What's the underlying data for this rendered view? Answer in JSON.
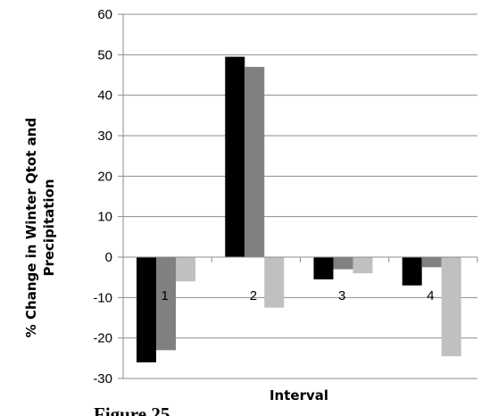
{
  "chart_data": {
    "type": "bar",
    "categories": [
      "1",
      "2",
      "3",
      "4"
    ],
    "series": [
      {
        "values": [
          -26,
          49.5,
          -5.5,
          -7
        ],
        "color": "#000000"
      },
      {
        "values": [
          -23,
          47,
          -3,
          -2.5
        ],
        "color": "#808080"
      },
      {
        "values": [
          -6,
          -12.5,
          -4,
          -24.5
        ],
        "color": "#c0c0c0"
      }
    ],
    "xlabel": "Interval",
    "ylabel_lines": [
      "% Change in Winter Qtot and",
      "Precipitation"
    ],
    "ylim": [
      -30,
      60
    ],
    "yticks": [
      60,
      50,
      40,
      30,
      20,
      10,
      0,
      -10,
      -20,
      -30
    ],
    "grid": true,
    "caption": "Figure 25"
  }
}
